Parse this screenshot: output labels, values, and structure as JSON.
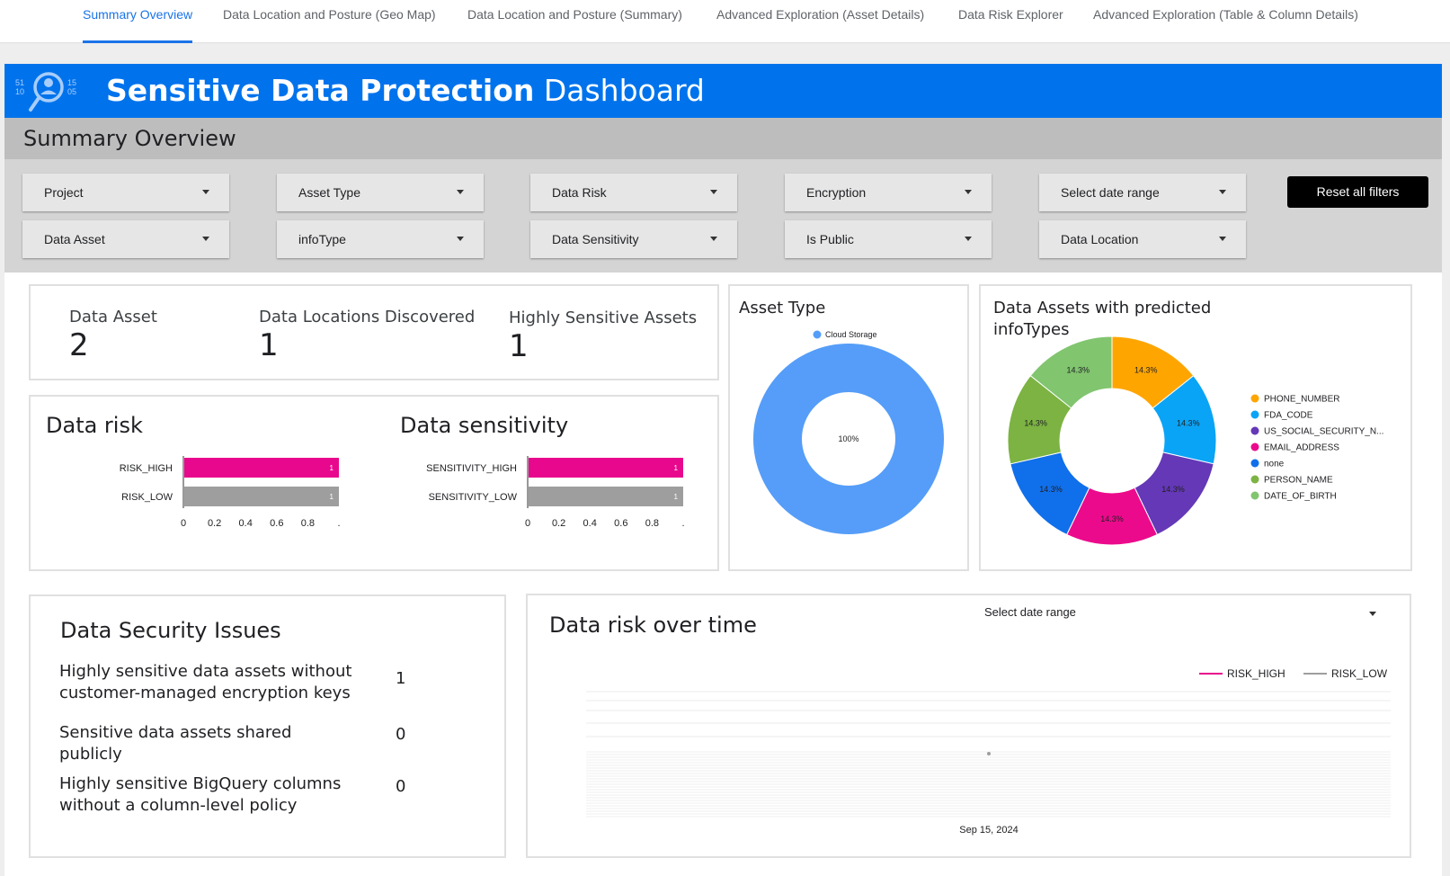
{
  "tabs": [
    {
      "label": "Summary Overview"
    },
    {
      "label": "Data Location and Posture (Geo Map)"
    },
    {
      "label": "Data Location and Posture (Summary)"
    },
    {
      "label": "Advanced Exploration (Asset Details)"
    },
    {
      "label": "Data Risk Explorer"
    },
    {
      "label": "Advanced Exploration (Table & Column Details)"
    }
  ],
  "header": {
    "title_bold": "Sensitive Data Protection",
    "title_rest": " Dashboard",
    "logo_digits": [
      "51",
      "10",
      "15",
      "05"
    ]
  },
  "section_title": "Summary Overview",
  "filters": {
    "row1": [
      "Project",
      "Asset Type",
      "Data Risk",
      "Encryption",
      "Select date range"
    ],
    "row2": [
      "Data Asset",
      "infoType",
      "Data Sensitivity",
      "Is Public",
      "Data Location"
    ],
    "reset_label": "Reset all filters"
  },
  "scorecards": [
    {
      "label": "Data Asset",
      "value": "2"
    },
    {
      "label": "Data Locations Discovered",
      "value": "1"
    },
    {
      "label": "Highly Sensitive Assets",
      "value": "1"
    }
  ],
  "asset_type_title": "Asset Type",
  "infotypes_title_line1": "Data Assets with predicted",
  "infotypes_title_line2": "infoTypes",
  "data_risk_title": "Data risk",
  "data_sensitivity_title": "Data sensitivity",
  "security": {
    "title": "Data Security Issues",
    "items": [
      {
        "line1": "Highly sensitive data assets without",
        "line2": "customer-managed encryption keys",
        "value": "1"
      },
      {
        "line1": "Sensitive data assets shared publicly",
        "line2": "",
        "value": "0"
      },
      {
        "line1": "Highly sensitive BigQuery columns",
        "line2": "without a column-level policy",
        "value": "0"
      }
    ]
  },
  "risk_over_time": {
    "title": "Data risk over time",
    "date_range_label": "Select date range"
  },
  "colors": {
    "accent": "#1a73e8",
    "header_blue": "#0073ec",
    "risk_high": "#e8088d",
    "risk_low": "#9e9e9e"
  },
  "chart_data": [
    {
      "type": "bar",
      "orientation": "horizontal",
      "categories": [
        "RISK_HIGH",
        "RISK_LOW"
      ],
      "values": [
        1,
        1
      ],
      "data_labels": [
        "1",
        "1"
      ],
      "colors": [
        "#e8088d",
        "#9e9e9e"
      ],
      "xlim": [
        0,
        1
      ],
      "xticks": [
        "0",
        "0.2",
        "0.4",
        "0.6",
        "0.8",
        "."
      ]
    },
    {
      "type": "bar",
      "orientation": "horizontal",
      "categories": [
        "SENSITIVITY_HIGH",
        "SENSITIVITY_LOW"
      ],
      "values": [
        1,
        1
      ],
      "data_labels": [
        "1",
        "1"
      ],
      "colors": [
        "#e8088d",
        "#9e9e9e"
      ],
      "xlim": [
        0,
        1
      ],
      "xticks": [
        "0",
        "0.2",
        "0.4",
        "0.6",
        "0.8",
        "."
      ]
    },
    {
      "type": "pie",
      "donut": true,
      "legend": "top",
      "labels": [
        "Cloud Storage"
      ],
      "values": [
        100
      ],
      "slice_labels": [
        "100%"
      ],
      "colors": [
        "#559df8"
      ]
    },
    {
      "type": "pie",
      "donut": true,
      "legend": "right",
      "labels": [
        "PHONE_NUMBER",
        "FDA_CODE",
        "US_SOCIAL_SECURITY_N...",
        "EMAIL_ADDRESS",
        "none",
        "PERSON_NAME",
        "DATE_OF_BIRTH"
      ],
      "values": [
        14.3,
        14.3,
        14.3,
        14.3,
        14.3,
        14.3,
        14.3
      ],
      "slice_labels": [
        "14.3%",
        "14.3%",
        "14.3%",
        "14.3%",
        "14.3%",
        "14.3%",
        "14.3%"
      ],
      "colors": [
        "#ffa500",
        "#0aa4f6",
        "#6438b6",
        "#ec0a8c",
        "#106fea",
        "#7cb342",
        "#81c56f"
      ]
    },
    {
      "type": "line",
      "series": [
        {
          "name": "RISK_HIGH",
          "color": "#e8088d"
        },
        {
          "name": "RISK_LOW",
          "color": "#9e9e9e"
        }
      ],
      "x_tick_labels": [
        "Sep 15, 2024"
      ],
      "legend": "top-right",
      "grid": true
    }
  ]
}
